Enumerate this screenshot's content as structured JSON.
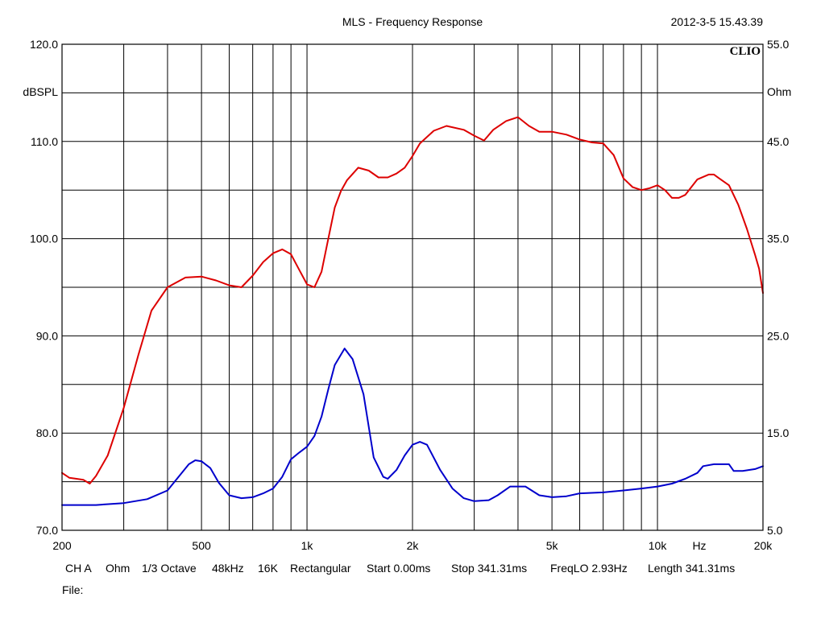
{
  "header": {
    "title": "MLS - Frequency Response",
    "timestamp": "2012-3-5 15.43.39",
    "brand": "CLIO"
  },
  "chart_data": {
    "type": "line",
    "x_scale": "log",
    "xlim": [
      200,
      20000
    ],
    "ylim_left": [
      70,
      120
    ],
    "ylim_right": [
      5,
      55
    ],
    "ylabel_left": "dBSPL",
    "ylabel_right": "Ohm",
    "xlabel": "Hz",
    "grid": true,
    "x_tick_labels": [
      {
        "value": 200,
        "label": "200"
      },
      {
        "value": 500,
        "label": "500"
      },
      {
        "value": 1000,
        "label": "1k"
      },
      {
        "value": 2000,
        "label": "2k"
      },
      {
        "value": 5000,
        "label": "5k"
      },
      {
        "value": 10000,
        "label": "10k"
      },
      {
        "value": 20000,
        "label": "20k"
      }
    ],
    "y_left_tick_labels": [
      {
        "value": 120,
        "label": "120.0"
      },
      {
        "value": 110,
        "label": "110.0"
      },
      {
        "value": 100,
        "label": "100.0"
      },
      {
        "value": 90,
        "label": "90.0"
      },
      {
        "value": 80,
        "label": "80.0"
      },
      {
        "value": 70,
        "label": "70.0"
      }
    ],
    "y_right_tick_labels": [
      {
        "value": 55,
        "label": "55.0"
      },
      {
        "value": 45,
        "label": "45.0"
      },
      {
        "value": 35,
        "label": "35.0"
      },
      {
        "value": 25,
        "label": "25.0"
      },
      {
        "value": 15,
        "label": "15.0"
      },
      {
        "value": 5,
        "label": "5.0"
      }
    ],
    "series": [
      {
        "color": "#dd0000",
        "axis": "left",
        "points": [
          [
            200,
            75.9
          ],
          [
            210,
            75.4
          ],
          [
            220,
            75.3
          ],
          [
            230,
            75.2
          ],
          [
            240,
            74.8
          ],
          [
            250,
            75.6
          ],
          [
            270,
            77.7
          ],
          [
            300,
            82.6
          ],
          [
            330,
            88.0
          ],
          [
            360,
            92.6
          ],
          [
            400,
            95.0
          ],
          [
            450,
            96.0
          ],
          [
            500,
            96.1
          ],
          [
            550,
            95.7
          ],
          [
            600,
            95.2
          ],
          [
            650,
            95.0
          ],
          [
            700,
            96.2
          ],
          [
            750,
            97.6
          ],
          [
            800,
            98.5
          ],
          [
            850,
            98.9
          ],
          [
            900,
            98.4
          ],
          [
            950,
            96.8
          ],
          [
            1000,
            95.3
          ],
          [
            1050,
            95.0
          ],
          [
            1100,
            96.6
          ],
          [
            1150,
            100.0
          ],
          [
            1200,
            103.2
          ],
          [
            1250,
            104.9
          ],
          [
            1300,
            106.0
          ],
          [
            1400,
            107.3
          ],
          [
            1500,
            107.0
          ],
          [
            1600,
            106.3
          ],
          [
            1700,
            106.3
          ],
          [
            1800,
            106.7
          ],
          [
            1900,
            107.3
          ],
          [
            2000,
            108.5
          ],
          [
            2100,
            109.8
          ],
          [
            2300,
            111.1
          ],
          [
            2500,
            111.6
          ],
          [
            2800,
            111.2
          ],
          [
            3000,
            110.6
          ],
          [
            3200,
            110.1
          ],
          [
            3400,
            111.2
          ],
          [
            3700,
            112.1
          ],
          [
            4000,
            112.5
          ],
          [
            4300,
            111.6
          ],
          [
            4600,
            111.0
          ],
          [
            5000,
            111.0
          ],
          [
            5500,
            110.7
          ],
          [
            6000,
            110.2
          ],
          [
            6500,
            109.9
          ],
          [
            7000,
            109.8
          ],
          [
            7500,
            108.6
          ],
          [
            8000,
            106.2
          ],
          [
            8500,
            105.3
          ],
          [
            9000,
            105.0
          ],
          [
            9500,
            105.2
          ],
          [
            10000,
            105.5
          ],
          [
            10500,
            105.0
          ],
          [
            11000,
            104.2
          ],
          [
            11500,
            104.2
          ],
          [
            12000,
            104.5
          ],
          [
            13000,
            106.1
          ],
          [
            14000,
            106.6
          ],
          [
            14500,
            106.6
          ],
          [
            15000,
            106.2
          ],
          [
            16000,
            105.5
          ],
          [
            17000,
            103.5
          ],
          [
            18000,
            101.0
          ],
          [
            19000,
            98.3
          ],
          [
            19500,
            96.9
          ],
          [
            20000,
            94.4
          ]
        ]
      },
      {
        "color": "#0000cc",
        "axis": "right",
        "points": [
          [
            200,
            7.6
          ],
          [
            250,
            7.6
          ],
          [
            300,
            7.8
          ],
          [
            350,
            8.2
          ],
          [
            400,
            9.1
          ],
          [
            430,
            10.5
          ],
          [
            460,
            11.8
          ],
          [
            480,
            12.2
          ],
          [
            500,
            12.1
          ],
          [
            530,
            11.4
          ],
          [
            560,
            9.9
          ],
          [
            600,
            8.6
          ],
          [
            650,
            8.3
          ],
          [
            700,
            8.4
          ],
          [
            750,
            8.8
          ],
          [
            800,
            9.3
          ],
          [
            850,
            10.5
          ],
          [
            900,
            12.3
          ],
          [
            950,
            13.0
          ],
          [
            1000,
            13.6
          ],
          [
            1050,
            14.7
          ],
          [
            1100,
            16.7
          ],
          [
            1150,
            19.5
          ],
          [
            1200,
            22.0
          ],
          [
            1280,
            23.7
          ],
          [
            1350,
            22.6
          ],
          [
            1450,
            19.0
          ],
          [
            1550,
            12.5
          ],
          [
            1650,
            10.5
          ],
          [
            1700,
            10.3
          ],
          [
            1800,
            11.2
          ],
          [
            1900,
            12.7
          ],
          [
            2000,
            13.8
          ],
          [
            2100,
            14.1
          ],
          [
            2200,
            13.8
          ],
          [
            2400,
            11.2
          ],
          [
            2600,
            9.3
          ],
          [
            2800,
            8.3
          ],
          [
            3000,
            8.0
          ],
          [
            3300,
            8.1
          ],
          [
            3500,
            8.6
          ],
          [
            3800,
            9.5
          ],
          [
            4200,
            9.5
          ],
          [
            4600,
            8.6
          ],
          [
            5000,
            8.4
          ],
          [
            5500,
            8.5
          ],
          [
            6000,
            8.8
          ],
          [
            7000,
            8.9
          ],
          [
            8000,
            9.1
          ],
          [
            9000,
            9.3
          ],
          [
            10000,
            9.5
          ],
          [
            11000,
            9.8
          ],
          [
            12000,
            10.3
          ],
          [
            13000,
            10.9
          ],
          [
            13500,
            11.6
          ],
          [
            14500,
            11.8
          ],
          [
            16000,
            11.8
          ],
          [
            16500,
            11.1
          ],
          [
            17500,
            11.1
          ],
          [
            19000,
            11.3
          ],
          [
            20000,
            11.6
          ]
        ]
      }
    ]
  },
  "footer": {
    "settings": [
      {
        "label": "CH A",
        "x": 81
      },
      {
        "label": "Ohm",
        "x": 131
      },
      {
        "label": "1/3 Octave",
        "x": 176
      },
      {
        "label": "48kHz",
        "x": 263
      },
      {
        "label": "16K",
        "x": 320
      },
      {
        "label": "Rectangular",
        "x": 360
      },
      {
        "label": "Start 0.00ms",
        "x": 455
      },
      {
        "label": "Stop 341.31ms",
        "x": 560
      },
      {
        "label": "FreqLO 2.93Hz",
        "x": 683
      },
      {
        "label": "Length 341.31ms",
        "x": 804
      }
    ],
    "file_label": "File:"
  }
}
